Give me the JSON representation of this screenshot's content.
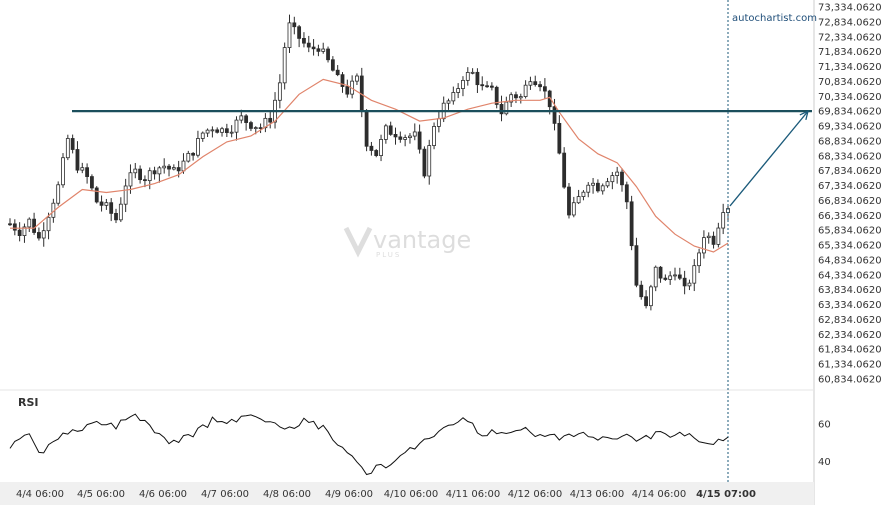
{
  "brand": "autochartist.com",
  "watermark": {
    "name": "vantage",
    "sub": "PLUS"
  },
  "colors": {
    "candle": "#2d2d2d",
    "ma": "#e0846b",
    "level": "#1b4f5c",
    "arrow": "#1b5a7a",
    "rsi": "#111111",
    "axis": "#cccccc",
    "x_axis_bg": "#f0f0f0",
    "brand": "#1f4e79"
  },
  "chart_data": {
    "type": "candlestick",
    "y_ticks": [
      "73,334.0620",
      "72,834.0620",
      "72,334.0620",
      "71,834.0620",
      "71,334.0620",
      "70,834.0620",
      "70,334.0620",
      "69,834.0620",
      "69,334.0620",
      "68,834.0620",
      "68,334.0620",
      "67,834.0620",
      "67,334.0620",
      "66,834.0620",
      "66,334.0620",
      "65,834.0620",
      "65,334.0620",
      "64,834.0620",
      "64,334.0620",
      "63,834.0620",
      "63,334.0620",
      "62,834.0620",
      "62,334.0620",
      "61,834.0620",
      "61,334.0620",
      "60,834.0620"
    ],
    "ylim": [
      60834.062,
      73334.062
    ],
    "x_ticks": [
      "4/4 06:00",
      "4/5 06:00",
      "4/6 06:00",
      "4/7 06:00",
      "4/8 06:00",
      "4/9 06:00",
      "4/10 06:00",
      "4/11 06:00",
      "4/12 06:00",
      "4/13 06:00",
      "4/14 06:00",
      "4/15 07:00"
    ],
    "resistance_level": 69834.062,
    "projection": {
      "from": 66650,
      "to": 69834.062
    },
    "close_path": [
      [
        0,
        66050
      ],
      [
        2,
        65800
      ],
      [
        4,
        66150
      ],
      [
        6,
        65550
      ],
      [
        8,
        66400
      ],
      [
        10,
        67300
      ],
      [
        12,
        68900
      ],
      [
        14,
        68000
      ],
      [
        16,
        67600
      ],
      [
        18,
        66800
      ],
      [
        20,
        66600
      ],
      [
        22,
        66200
      ],
      [
        24,
        67400
      ],
      [
        26,
        67800
      ],
      [
        28,
        67600
      ],
      [
        30,
        67900
      ],
      [
        32,
        68000
      ],
      [
        34,
        67800
      ],
      [
        36,
        68100
      ],
      [
        38,
        68500
      ],
      [
        40,
        69100
      ],
      [
        42,
        69300
      ],
      [
        44,
        69200
      ],
      [
        46,
        69300
      ],
      [
        48,
        69600
      ],
      [
        50,
        69400
      ],
      [
        52,
        69300
      ],
      [
        54,
        69600
      ],
      [
        56,
        70800
      ],
      [
        57,
        72000
      ],
      [
        58,
        72700
      ],
      [
        60,
        72300
      ],
      [
        62,
        71900
      ],
      [
        64,
        72000
      ],
      [
        66,
        71500
      ],
      [
        68,
        70900
      ],
      [
        70,
        70500
      ],
      [
        72,
        70900
      ],
      [
        74,
        68800
      ],
      [
        76,
        68400
      ],
      [
        78,
        69200
      ],
      [
        80,
        69100
      ],
      [
        82,
        69000
      ],
      [
        84,
        69000
      ],
      [
        86,
        67800
      ],
      [
        88,
        69400
      ],
      [
        90,
        70000
      ],
      [
        92,
        70300
      ],
      [
        94,
        71000
      ],
      [
        96,
        71100
      ],
      [
        98,
        70600
      ],
      [
        100,
        70500
      ],
      [
        102,
        69800
      ],
      [
        104,
        70400
      ],
      [
        106,
        70300
      ],
      [
        108,
        71000
      ],
      [
        110,
        70800
      ],
      [
        112,
        70100
      ],
      [
        114,
        68400
      ],
      [
        116,
        66300
      ],
      [
        118,
        66900
      ],
      [
        120,
        67500
      ],
      [
        122,
        67300
      ],
      [
        124,
        67600
      ],
      [
        126,
        67800
      ],
      [
        128,
        66800
      ],
      [
        130,
        64000
      ],
      [
        132,
        63200
      ],
      [
        134,
        64500
      ],
      [
        136,
        64100
      ],
      [
        138,
        64500
      ],
      [
        140,
        63800
      ],
      [
        142,
        64500
      ],
      [
        144,
        65700
      ],
      [
        146,
        65500
      ],
      [
        148,
        66600
      ],
      [
        149,
        66650
      ]
    ],
    "ma_path": [
      [
        0,
        65900
      ],
      [
        5,
        65900
      ],
      [
        10,
        66600
      ],
      [
        15,
        67200
      ],
      [
        20,
        67100
      ],
      [
        25,
        67200
      ],
      [
        30,
        67400
      ],
      [
        35,
        67700
      ],
      [
        40,
        68300
      ],
      [
        45,
        68800
      ],
      [
        50,
        69000
      ],
      [
        55,
        69500
      ],
      [
        60,
        70400
      ],
      [
        65,
        70900
      ],
      [
        70,
        70700
      ],
      [
        75,
        70200
      ],
      [
        80,
        69900
      ],
      [
        85,
        69500
      ],
      [
        90,
        69600
      ],
      [
        95,
        69900
      ],
      [
        100,
        70100
      ],
      [
        105,
        70200
      ],
      [
        110,
        70200
      ],
      [
        112,
        70300
      ],
      [
        114,
        69800
      ],
      [
        118,
        68900
      ],
      [
        122,
        68400
      ],
      [
        126,
        68100
      ],
      [
        130,
        67300
      ],
      [
        134,
        66300
      ],
      [
        138,
        65700
      ],
      [
        142,
        65300
      ],
      [
        146,
        65100
      ],
      [
        149,
        65400
      ]
    ],
    "rsi": {
      "ticks": [
        "60",
        "40"
      ],
      "ylim": [
        30,
        70
      ],
      "path": [
        [
          0,
          48
        ],
        [
          4,
          55
        ],
        [
          6,
          44
        ],
        [
          10,
          53
        ],
        [
          14,
          57
        ],
        [
          18,
          61
        ],
        [
          22,
          58
        ],
        [
          26,
          66
        ],
        [
          30,
          55
        ],
        [
          34,
          50
        ],
        [
          38,
          54
        ],
        [
          42,
          62
        ],
        [
          46,
          62
        ],
        [
          50,
          64
        ],
        [
          54,
          60
        ],
        [
          58,
          58
        ],
        [
          62,
          62
        ],
        [
          66,
          56
        ],
        [
          70,
          44
        ],
        [
          74,
          34
        ],
        [
          78,
          38
        ],
        [
          82,
          44
        ],
        [
          86,
          52
        ],
        [
          90,
          56
        ],
        [
          94,
          63
        ],
        [
          98,
          54
        ],
        [
          102,
          56
        ],
        [
          106,
          58
        ],
        [
          110,
          54
        ],
        [
          114,
          52
        ],
        [
          118,
          55
        ],
        [
          122,
          51
        ],
        [
          126,
          53
        ],
        [
          130,
          52
        ],
        [
          134,
          54
        ],
        [
          138,
          55
        ],
        [
          142,
          53
        ],
        [
          146,
          50
        ],
        [
          149,
          53
        ]
      ]
    }
  }
}
